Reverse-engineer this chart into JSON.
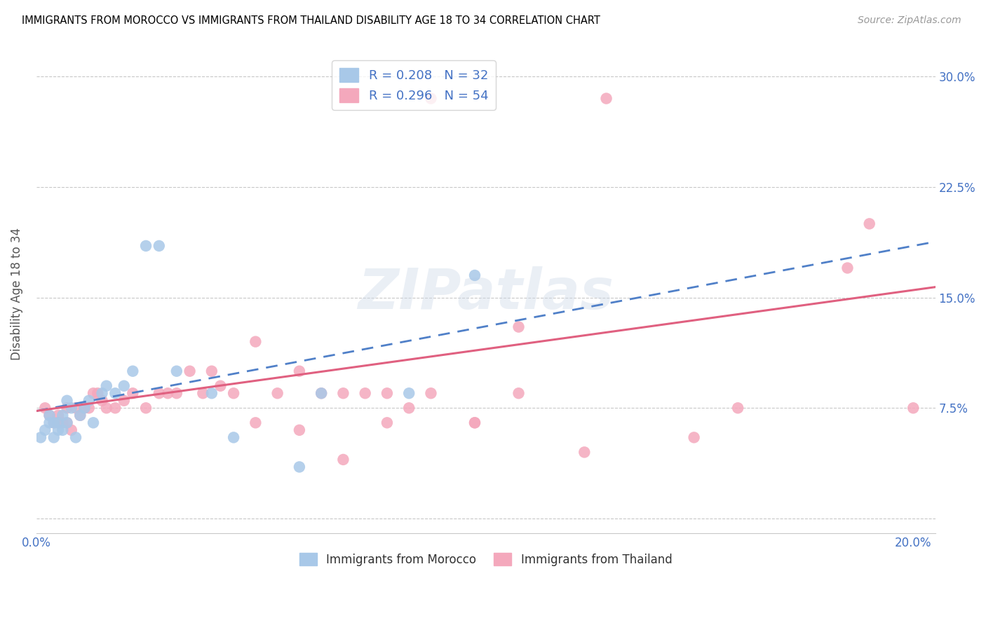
{
  "title": "IMMIGRANTS FROM MOROCCO VS IMMIGRANTS FROM THAILAND DISABILITY AGE 18 TO 34 CORRELATION CHART",
  "source": "Source: ZipAtlas.com",
  "ylabel": "Disability Age 18 to 34",
  "xlim": [
    0.0,
    0.205
  ],
  "ylim": [
    -0.01,
    0.315
  ],
  "xticks": [
    0.0,
    0.05,
    0.1,
    0.15,
    0.2
  ],
  "xtick_labels": [
    "0.0%",
    "",
    "",
    "",
    "20.0%"
  ],
  "yticks": [
    0.0,
    0.075,
    0.15,
    0.225,
    0.3
  ],
  "ytick_labels": [
    "",
    "7.5%",
    "15.0%",
    "22.5%",
    "30.0%"
  ],
  "morocco_R": 0.208,
  "morocco_N": 32,
  "thailand_R": 0.296,
  "thailand_N": 54,
  "morocco_color": "#a8c8e8",
  "thailand_color": "#f4a8bc",
  "morocco_line_color": "#5080c8",
  "thailand_line_color": "#e06080",
  "watermark": "ZIPatlas",
  "morocco_x": [
    0.001,
    0.002,
    0.003,
    0.003,
    0.004,
    0.004,
    0.005,
    0.005,
    0.006,
    0.006,
    0.007,
    0.007,
    0.008,
    0.009,
    0.01,
    0.011,
    0.012,
    0.013,
    0.015,
    0.016,
    0.018,
    0.02,
    0.022,
    0.025,
    0.028,
    0.032,
    0.04,
    0.045,
    0.06,
    0.065,
    0.085,
    0.1
  ],
  "morocco_y": [
    0.055,
    0.06,
    0.065,
    0.07,
    0.055,
    0.065,
    0.06,
    0.065,
    0.06,
    0.07,
    0.065,
    0.08,
    0.075,
    0.055,
    0.07,
    0.075,
    0.08,
    0.065,
    0.085,
    0.09,
    0.085,
    0.09,
    0.1,
    0.185,
    0.185,
    0.1,
    0.085,
    0.055,
    0.035,
    0.085,
    0.085,
    0.165
  ],
  "thailand_x": [
    0.002,
    0.003,
    0.004,
    0.005,
    0.005,
    0.006,
    0.007,
    0.007,
    0.008,
    0.009,
    0.01,
    0.011,
    0.012,
    0.013,
    0.014,
    0.015,
    0.016,
    0.018,
    0.02,
    0.022,
    0.025,
    0.028,
    0.03,
    0.032,
    0.035,
    0.038,
    0.04,
    0.042,
    0.045,
    0.05,
    0.055,
    0.06,
    0.065,
    0.07,
    0.08,
    0.09,
    0.1,
    0.11,
    0.13,
    0.16,
    0.19,
    0.05,
    0.06,
    0.07,
    0.075,
    0.08,
    0.085,
    0.09,
    0.1,
    0.11,
    0.125,
    0.15,
    0.185,
    0.2
  ],
  "thailand_y": [
    0.075,
    0.07,
    0.065,
    0.065,
    0.07,
    0.065,
    0.065,
    0.075,
    0.06,
    0.075,
    0.07,
    0.075,
    0.075,
    0.085,
    0.085,
    0.08,
    0.075,
    0.075,
    0.08,
    0.085,
    0.075,
    0.085,
    0.085,
    0.085,
    0.1,
    0.085,
    0.1,
    0.09,
    0.085,
    0.065,
    0.085,
    0.06,
    0.085,
    0.04,
    0.085,
    0.285,
    0.065,
    0.13,
    0.285,
    0.075,
    0.2,
    0.12,
    0.1,
    0.085,
    0.085,
    0.065,
    0.075,
    0.085,
    0.065,
    0.085,
    0.045,
    0.055,
    0.17,
    0.075
  ],
  "morocco_line_x0": 0.0,
  "morocco_line_y0": 0.073,
  "morocco_line_x1": 0.2,
  "morocco_line_y1": 0.185,
  "thailand_line_x0": 0.0,
  "thailand_line_y0": 0.073,
  "thailand_line_x1": 0.2,
  "thailand_line_y1": 0.155
}
